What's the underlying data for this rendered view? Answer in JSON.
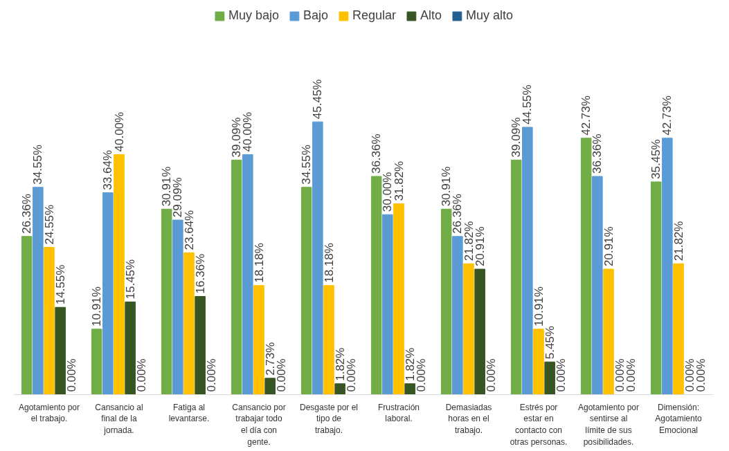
{
  "chart_data": {
    "type": "bar",
    "categories": [
      "Agotamiento por el trabajo.",
      "Cansancio al final de la jornada.",
      "Fatiga al levantarse.",
      "Cansancio por trabajar todo el día con gente.",
      "Desgaste por el tipo de trabajo.",
      "Frustración laboral.",
      "Demasiadas horas en el trabajo.",
      "Estrés por estar en contacto con otras personas.",
      "Agotamiento por sentirse al límite de sus posibilidades.",
      "Dimensión: Agotamiento Emocional"
    ],
    "series": [
      {
        "name": "Muy bajo",
        "color": "#70ad47",
        "values": [
          26.36,
          10.91,
          30.91,
          39.09,
          34.55,
          36.36,
          30.91,
          39.09,
          42.73,
          35.45
        ],
        "value_labels": [
          "26.36%",
          "10.91%",
          "30.91%",
          "39.09%",
          "34.55%",
          "36.36%",
          "30.91%",
          "39.09%",
          "42.73%",
          "35.45%"
        ]
      },
      {
        "name": "Bajo",
        "color": "#5b9bd5",
        "values": [
          34.55,
          33.64,
          29.09,
          40.0,
          45.45,
          30.0,
          26.36,
          44.55,
          36.36,
          42.73
        ],
        "value_labels": [
          "34.55%",
          "33.64%",
          "29.09%",
          "40.00%",
          "45.45%",
          "30.00%",
          "26.36%",
          "44.55%",
          "36.36%",
          "42.73%"
        ]
      },
      {
        "name": "Regular",
        "color": "#ffc000",
        "values": [
          24.55,
          40.0,
          23.64,
          18.18,
          18.18,
          31.82,
          21.82,
          10.91,
          20.91,
          21.82
        ],
        "value_labels": [
          "24.55%",
          "40.00%",
          "23.64%",
          "18.18%",
          "18.18%",
          "31.82%",
          "21.82%",
          "10.91%",
          "20.91%",
          "21.82%"
        ]
      },
      {
        "name": "Alto",
        "color": "#375623",
        "values": [
          14.55,
          15.45,
          16.36,
          2.73,
          1.82,
          1.82,
          20.91,
          5.45,
          0.0,
          0.0
        ],
        "value_labels": [
          "14.55%",
          "15.45%",
          "16.36%",
          "2.73%",
          "1.82%",
          "1.82%",
          "20.91%",
          "5.45%",
          "0.00%",
          "0.00%"
        ]
      },
      {
        "name": "Muy alto",
        "color": "#255e91",
        "values": [
          0.0,
          0.0,
          0.0,
          0.0,
          0.0,
          0.0,
          0.0,
          0.0,
          0.0,
          0.0
        ],
        "value_labels": [
          "0.00%",
          "0.00%",
          "0.00%",
          "0.00%",
          "0.00%",
          "0.00%",
          "0.00%",
          "0.00%",
          "0.00%",
          "0.00%"
        ]
      }
    ],
    "legend": "top",
    "grid": false
  }
}
